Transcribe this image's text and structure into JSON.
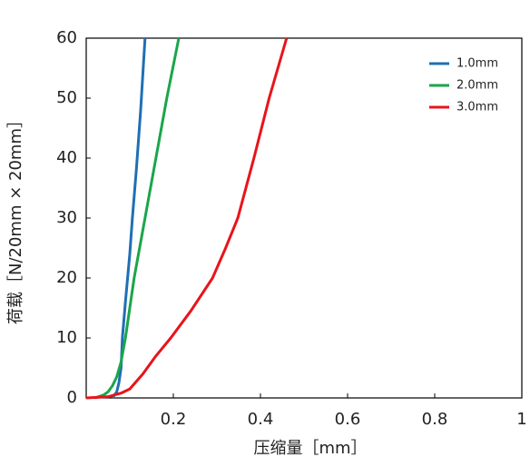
{
  "chart_data": {
    "type": "line",
    "xlabel": "压缩量［mm］",
    "ylabel": "荷载［N/20mm × 20mm］",
    "xlim": [
      0,
      1
    ],
    "xticks": [
      0.2,
      0.4,
      0.6,
      0.8,
      1
    ],
    "ylim": [
      0,
      60
    ],
    "yticks": [
      0,
      10,
      20,
      30,
      40,
      50,
      60
    ],
    "legend": "upper right",
    "series": [
      {
        "name": "1.0mm",
        "color": "#1f6fb4",
        "x": [
          0.06,
          0.07,
          0.075,
          0.08,
          0.083,
          0.09,
          0.1,
          0.106,
          0.115,
          0.125,
          0.135
        ],
        "values": [
          0,
          1,
          2.5,
          5,
          10,
          16,
          24,
          30,
          38,
          48,
          60
        ]
      },
      {
        "name": "2.0mm",
        "color": "#1aa64a",
        "x": [
          0.02,
          0.04,
          0.05,
          0.06,
          0.07,
          0.08,
          0.09,
          0.11,
          0.135,
          0.16,
          0.185,
          0.2125
        ],
        "values": [
          0,
          0.5,
          1,
          2,
          3.5,
          6,
          10,
          20,
          30,
          40,
          50,
          60
        ]
      },
      {
        "name": "3.0mm",
        "color": "#e8141a",
        "x": [
          0,
          0.05,
          0.08,
          0.1,
          0.13,
          0.16,
          0.194,
          0.24,
          0.29,
          0.32,
          0.348,
          0.385,
          0.42,
          0.46
        ],
        "values": [
          0,
          0.2,
          0.8,
          1.5,
          4,
          7,
          10,
          14.5,
          20,
          25,
          30,
          40,
          50,
          60
        ]
      }
    ]
  }
}
